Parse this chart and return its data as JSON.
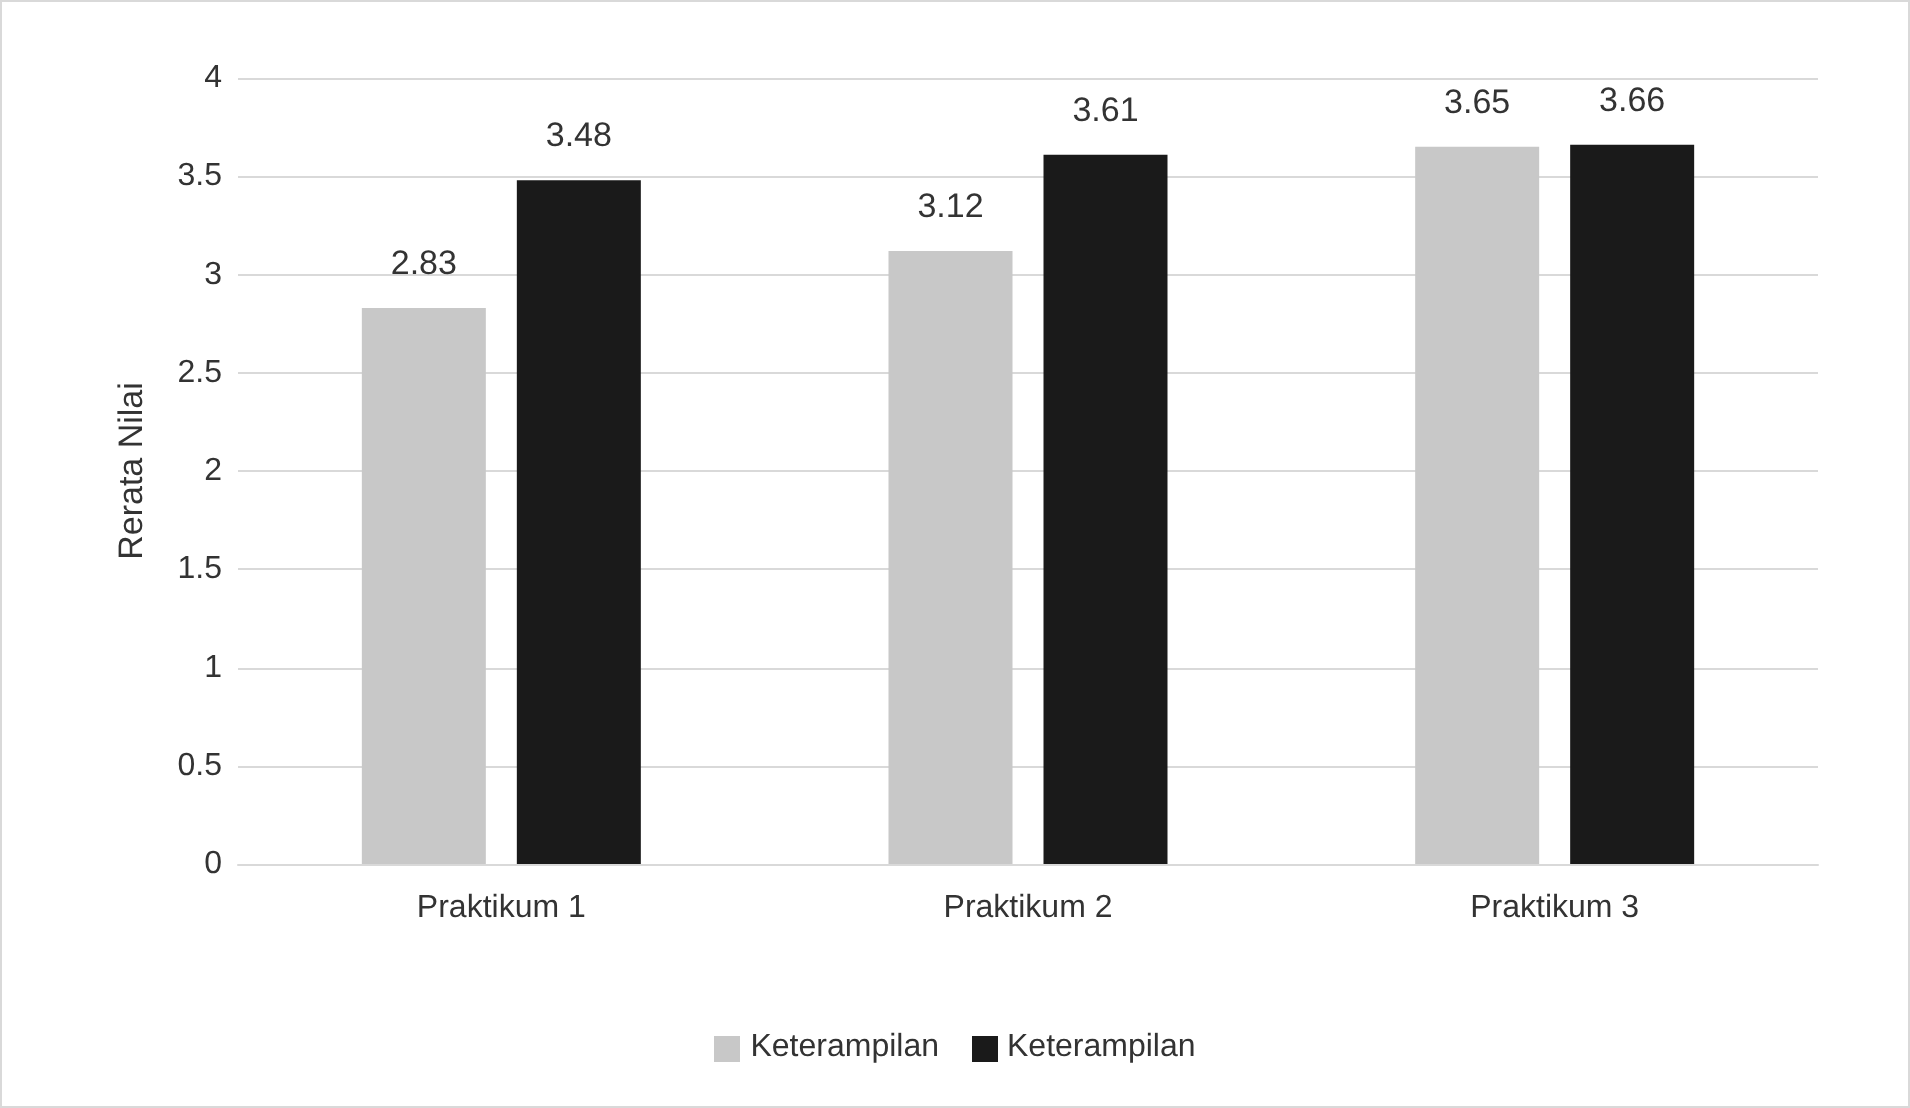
{
  "chart_data": {
    "type": "bar",
    "ylabel": "Rerata Nilai",
    "categories": [
      "Praktikum 1",
      "Praktikum 2",
      "Praktikum 3"
    ],
    "series": [
      {
        "name": "Keterampilan",
        "color": "#c8c8c8",
        "values": [
          2.83,
          3.12,
          3.65
        ]
      },
      {
        "name": "Keterampilan",
        "color": "#1a1a1a",
        "values": [
          3.48,
          3.61,
          3.66
        ]
      }
    ],
    "ylim": [
      0,
      4
    ],
    "yticks": [
      0,
      0.5,
      1,
      1.5,
      2,
      2.5,
      3,
      3.5,
      4
    ],
    "grid": "y",
    "legend": "bottom",
    "data_labels": true
  }
}
